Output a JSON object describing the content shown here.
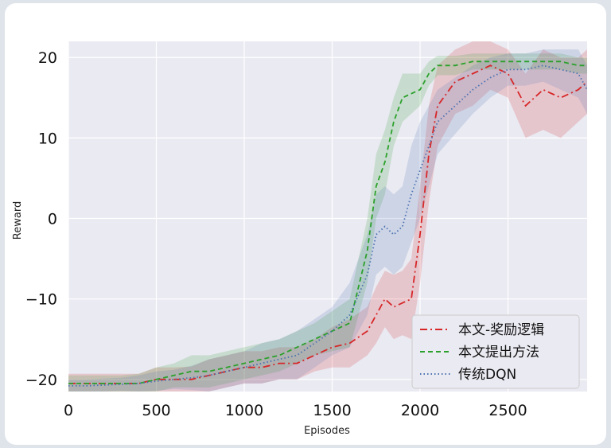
{
  "chart_data": {
    "type": "line",
    "title": "",
    "xlabel": "Episodes",
    "ylabel": "Reward",
    "xlim": [
      0,
      2950
    ],
    "ylim": [
      -21.5,
      22
    ],
    "xticks": [
      0,
      500,
      1000,
      1500,
      2000,
      2500
    ],
    "yticks": [
      -20,
      -10,
      0,
      10,
      20
    ],
    "grid": true,
    "legend_position": "lower-right",
    "x": [
      0,
      100,
      200,
      300,
      400,
      500,
      600,
      700,
      800,
      900,
      1000,
      1100,
      1200,
      1300,
      1400,
      1500,
      1600,
      1700,
      1750,
      1800,
      1850,
      1900,
      1950,
      2000,
      2050,
      2100,
      2200,
      2300,
      2400,
      2500,
      2600,
      2700,
      2800,
      2900,
      2950
    ],
    "series": [
      {
        "name": "本文-奖励逻辑",
        "color": "#d62728",
        "dash": "dashdot",
        "values": [
          -20.5,
          -20.5,
          -20.5,
          -20.5,
          -20.5,
          -20,
          -20,
          -20,
          -19.5,
          -19,
          -18.5,
          -18.5,
          -18,
          -18,
          -17,
          -16,
          -15.5,
          -14,
          -12,
          -10,
          -11,
          -10.5,
          -10,
          -2,
          8,
          14,
          17,
          18,
          19,
          18,
          14,
          16,
          15,
          16,
          17
        ],
        "band": [
          1.2,
          1.2,
          1.2,
          1.2,
          1.2,
          1.5,
          1.5,
          1.6,
          2,
          2,
          2,
          2,
          2,
          2,
          2,
          2.5,
          3,
          3,
          3.5,
          3.5,
          4,
          4,
          5,
          6,
          6,
          5,
          4,
          4,
          3,
          3,
          4,
          5,
          5,
          4,
          4
        ]
      },
      {
        "name": "本文提出方法",
        "color": "#2ca02c",
        "dash": "dashed",
        "values": [
          -20.5,
          -20.5,
          -20.5,
          -20.5,
          -20.5,
          -20,
          -19.5,
          -19,
          -19,
          -18.5,
          -18,
          -17.5,
          -17,
          -16,
          -15,
          -14,
          -13,
          -4,
          4,
          7,
          12,
          15,
          15.5,
          16,
          18,
          19,
          19,
          19.5,
          19.5,
          19.5,
          19.5,
          19.5,
          19.5,
          19,
          19
        ],
        "band": [
          1,
          1,
          1,
          1,
          1.2,
          1.5,
          1.5,
          2,
          2,
          2,
          2,
          2,
          2,
          2,
          2,
          2.5,
          3,
          4,
          4,
          4,
          3,
          3,
          2.5,
          2,
          1.5,
          1.2,
          1.2,
          1,
          1,
          1,
          1,
          1,
          1,
          1,
          1
        ]
      },
      {
        "name": "传统DQN",
        "color": "#4c72b0",
        "dash": "dotted",
        "values": [
          -20.8,
          -20.8,
          -20.7,
          -20.6,
          -20.5,
          -20.2,
          -20,
          -19.8,
          -19.5,
          -19,
          -18.5,
          -18,
          -17.5,
          -17,
          -15.5,
          -14,
          -12,
          -7,
          -2,
          -1,
          -2,
          -1,
          3,
          6,
          9,
          12,
          14,
          16,
          17.5,
          18.5,
          18.5,
          19,
          18.5,
          18,
          16
        ],
        "band": [
          0.8,
          0.8,
          0.8,
          0.8,
          1,
          1.2,
          1.2,
          1.5,
          2,
          2,
          2,
          2.5,
          2.5,
          3,
          3,
          3,
          4,
          5,
          5,
          5,
          5,
          5,
          6,
          6,
          5,
          4,
          3.5,
          3,
          2.5,
          2,
          2,
          2,
          2.5,
          3,
          3
        ]
      }
    ]
  }
}
